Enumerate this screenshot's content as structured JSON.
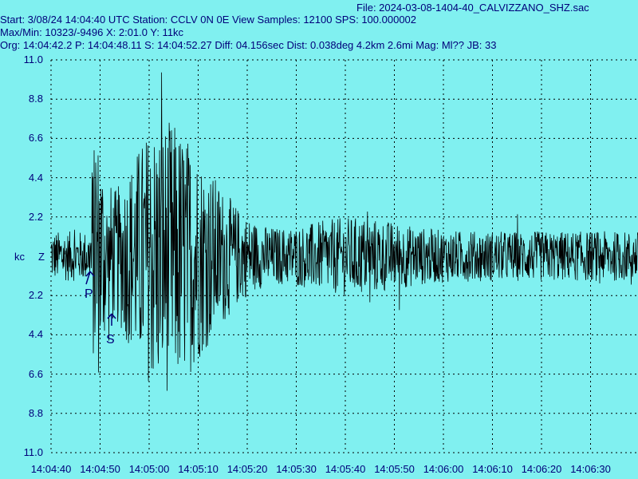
{
  "header": {
    "file": "File: 2024-03-08-1404-40_CALVIZZANO_SHZ.sac",
    "start": "Start: 3/08/24 14:04:40 UTC Station: CCLV 0N 0E View Samples: 12100  SPS: 100.000002",
    "maxmin": "Max/Min: 10323/-9496 X: 2:01.0 Y: 11kc",
    "orig": "Org: 14:04:42.2 P: 14:04:48.11 S: 14:04:52.27 Diff: 04.156sec Dist: 0.038deg 4.2km 2.6mi  Mag: Ml?? JB: 33"
  },
  "colors": {
    "background": "#80F0F0",
    "trace": "#000000",
    "text": "#00007A",
    "grid": "#000000"
  },
  "chart_data": {
    "type": "line",
    "title": "",
    "xlabel": "",
    "ylabel": "kc",
    "channel": "Z",
    "grid": true,
    "ylim": [
      -11.0,
      11.0
    ],
    "y_tick_labels": [
      "11.0",
      "8.8",
      "6.6",
      "4.4",
      "2.2",
      "2.2",
      "4.4",
      "6.6",
      "8.8",
      "11.0"
    ],
    "x_ticks": [
      "14:04:40",
      "14:04:50",
      "14:05:00",
      "14:05:10",
      "14:05:20",
      "14:05:30",
      "14:05:40",
      "14:05:50",
      "14:06:00",
      "14:06:10",
      "14:06:20",
      "14:06:30"
    ],
    "phase_markers": [
      {
        "label": "P",
        "time": "14:04:48.11"
      },
      {
        "label": "S",
        "time": "14:04:52.27"
      }
    ],
    "samples": 12100,
    "sps": 100.000002,
    "duration_s": 121.0,
    "max_counts": 10323,
    "min_counts": -9496
  }
}
